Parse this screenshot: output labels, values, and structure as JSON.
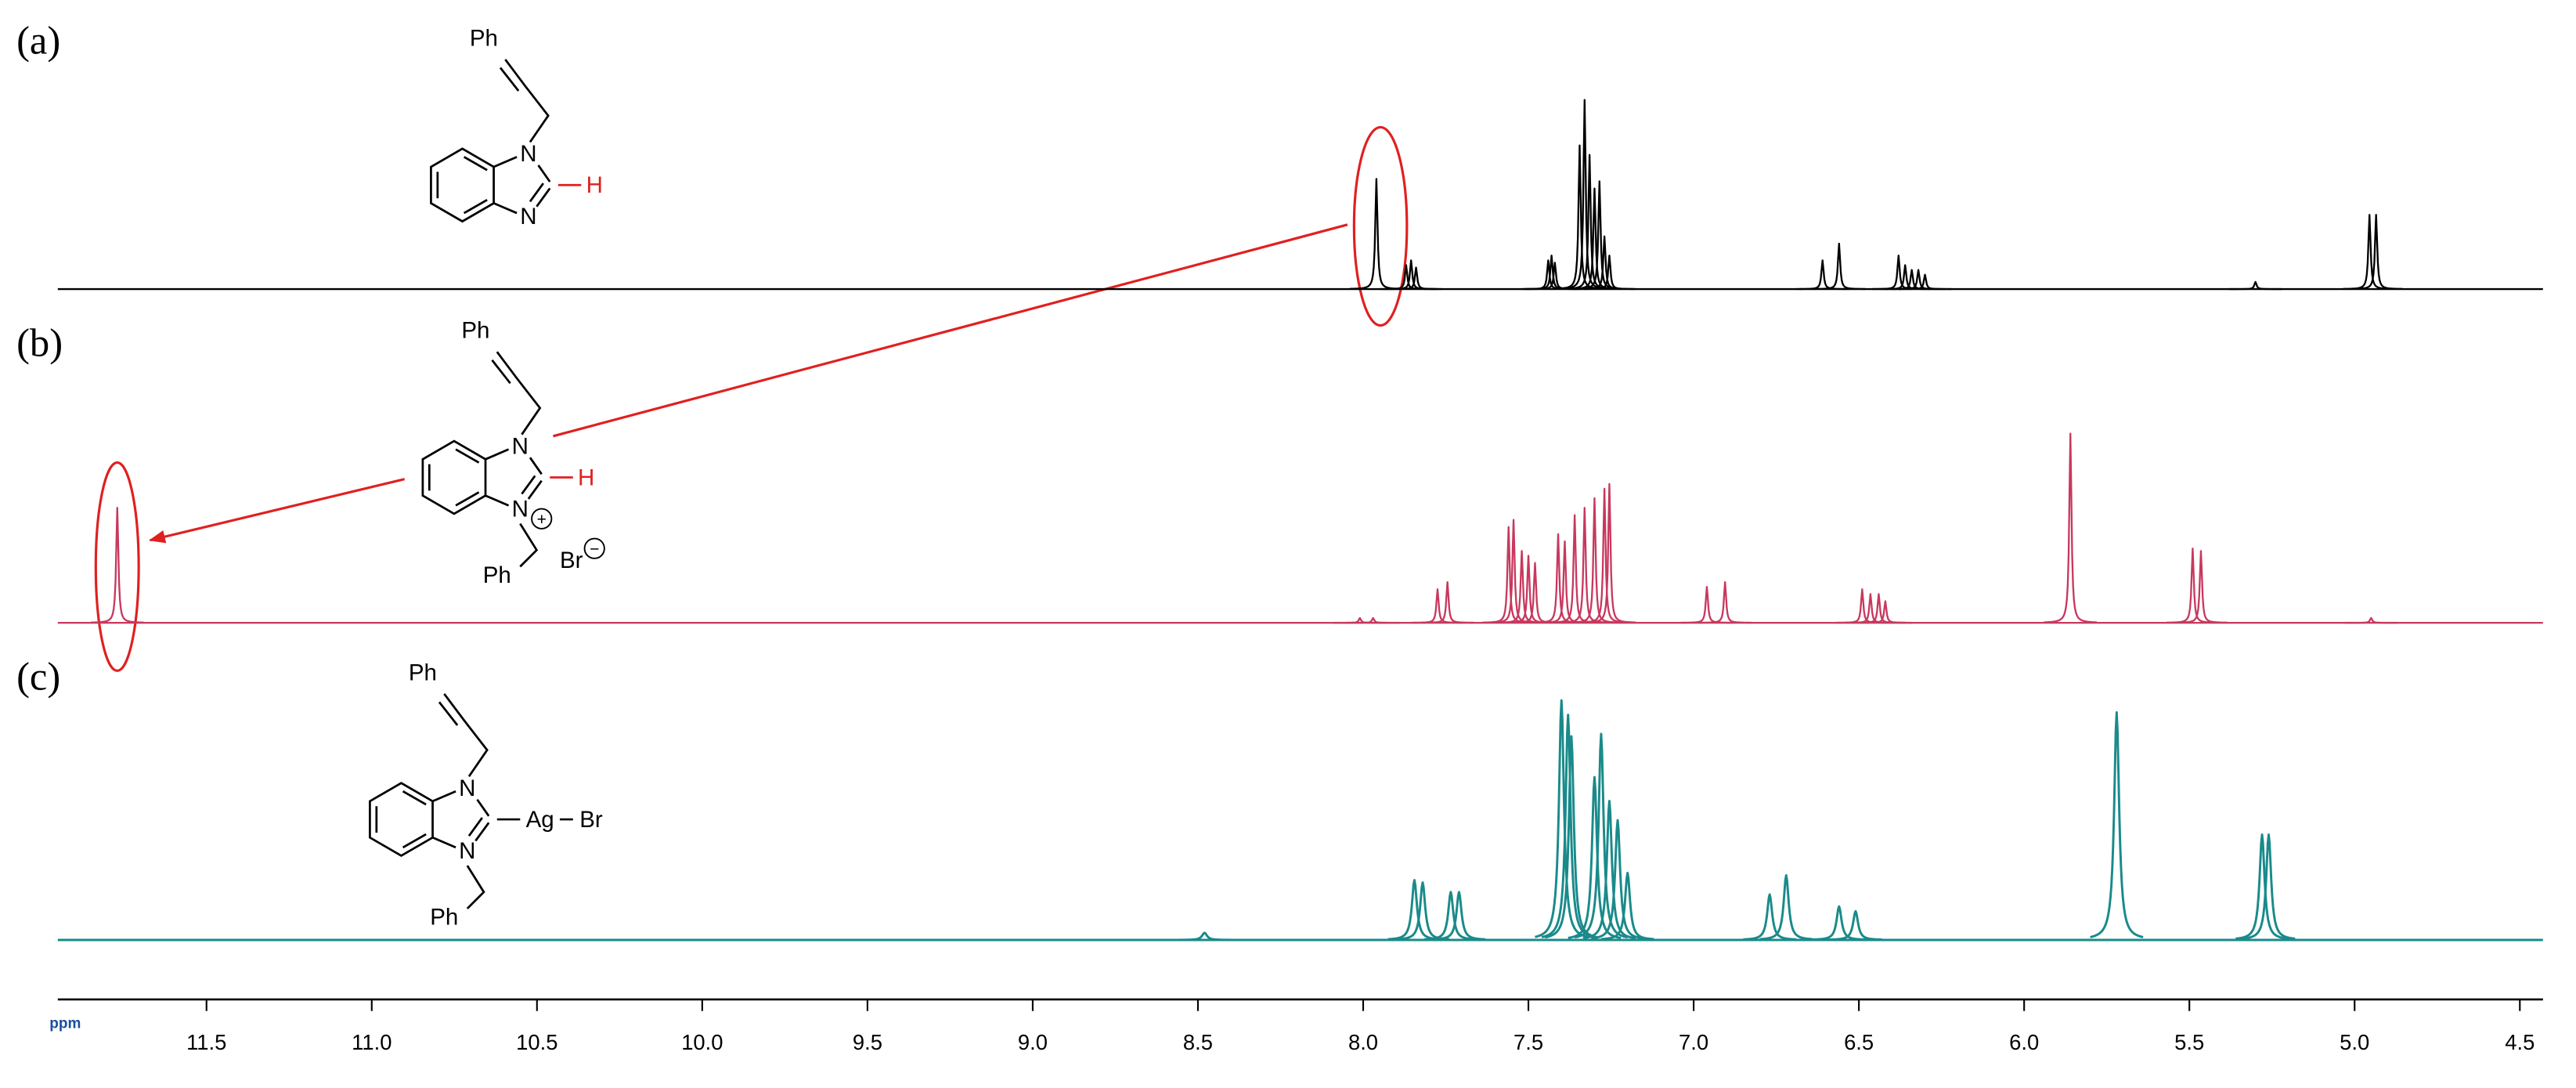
{
  "chart_data": {
    "type": "nmr_spectrum",
    "x_label": "ppm",
    "xlim": [
      11.95,
      4.43
    ],
    "xticks": [
      11.5,
      {
        "value": 11,
        "label": "11.0"
      },
      10.5,
      {
        "value": 10,
        "label": "10.0"
      },
      9.5,
      {
        "value": 9,
        "label": "9.0"
      },
      8.5,
      {
        "value": 8,
        "label": "8.0"
      },
      7.5,
      {
        "value": 7,
        "label": "7.0"
      },
      6.5,
      {
        "value": 6,
        "label": "6.0"
      },
      5.5,
      {
        "value": 5,
        "label": "5.0"
      },
      4.5
    ],
    "series": [
      {
        "name": "(a)",
        "color": "#000000",
        "x": [
          7.96,
          7.87,
          7.855,
          7.84,
          7.44,
          7.43,
          7.42,
          7.345,
          7.33,
          7.315,
          7.3,
          7.285,
          7.27,
          7.255,
          6.61,
          6.56,
          6.38,
          6.36,
          6.34,
          6.32,
          6.3,
          5.3,
          4.955,
          4.935
        ],
        "values": [
          46,
          10,
          12,
          9,
          12,
          14,
          11,
          60,
          79,
          56,
          42,
          45,
          22,
          14,
          12,
          19,
          14,
          10,
          8,
          8,
          6,
          3,
          31,
          31
        ]
      },
      {
        "name": "(b)",
        "color": "#c8385e",
        "x": [
          11.77,
          8.01,
          7.97,
          7.775,
          7.745,
          7.56,
          7.545,
          7.52,
          7.5,
          7.48,
          7.41,
          7.39,
          7.36,
          7.33,
          7.3,
          7.27,
          7.255,
          6.96,
          6.905,
          6.49,
          6.465,
          6.44,
          6.42,
          5.86,
          5.49,
          5.465,
          4.95
        ],
        "values": [
          48,
          2,
          2,
          14,
          17,
          40,
          43,
          30,
          28,
          25,
          37,
          34,
          45,
          48,
          52,
          56,
          58,
          15,
          17,
          14,
          12,
          12,
          9,
          79,
          31,
          30,
          2
        ]
      },
      {
        "name": "(c)",
        "color": "#1a8a8a",
        "x": [
          8.48,
          7.845,
          7.82,
          7.735,
          7.71,
          7.4,
          7.38,
          7.37,
          7.3,
          7.28,
          7.255,
          7.23,
          7.2,
          6.77,
          6.72,
          6.56,
          6.51,
          5.72,
          5.28,
          5.26
        ],
        "values": [
          3,
          25,
          24,
          20,
          20,
          100,
          94,
          85,
          68,
          86,
          58,
          50,
          28,
          19,
          27,
          14,
          12,
          95,
          44,
          44
        ]
      }
    ]
  },
  "structures": [
    [
      "Ph",
      "N",
      "N",
      "H"
    ],
    [
      "Ph",
      "N",
      "N",
      "H",
      "+",
      "Br",
      "−",
      "Ph"
    ],
    [
      "Ph",
      "N",
      "N",
      "Ag",
      "Br",
      "Ph"
    ]
  ]
}
